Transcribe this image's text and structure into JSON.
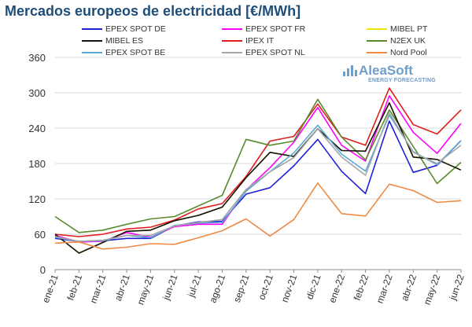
{
  "title": "Mercados europeos de electricidad [€/MWh]",
  "logo": {
    "name": "AleaSoft",
    "tagline": "ENERGY FORECASTING"
  },
  "chart_data": {
    "type": "line",
    "title": "Mercados europeos de electricidad [€/MWh]",
    "xlabel": "",
    "ylabel": "",
    "ylim": [
      0,
      360
    ],
    "yticks": [
      0,
      60,
      120,
      180,
      240,
      300,
      360
    ],
    "grid": true,
    "legend_position": "top",
    "categories": [
      "ene-21",
      "feb-21",
      "mar-21",
      "abr-21",
      "may-21",
      "jun-21",
      "jul-21",
      "ago-21",
      "sep-21",
      "oct-21",
      "nov-21",
      "dic-21",
      "ene-22",
      "feb-22",
      "mar-22",
      "abr-22",
      "may-22",
      "jun-22"
    ],
    "series": [
      {
        "name": "EPEX SPOT DE",
        "color": "#1f1fd6",
        "values": [
          53,
          48,
          49,
          53,
          53,
          74,
          81,
          82,
          128,
          139,
          176,
          221,
          167,
          129,
          252,
          165,
          177,
          219
        ]
      },
      {
        "name": "EPEX SPOT FR",
        "color": "#ff00ff",
        "values": [
          58,
          47,
          48,
          63,
          55,
          73,
          77,
          77,
          135,
          173,
          216,
          275,
          211,
          184,
          295,
          233,
          197,
          248
        ]
      },
      {
        "name": "MIBEL PT",
        "color": "#f2e600",
        "values": [
          60,
          28,
          46,
          65,
          67,
          83,
          92,
          106,
          156,
          199,
          192,
          239,
          202,
          201,
          283,
          191,
          187,
          169
        ]
      },
      {
        "name": "IPEX IT",
        "color": "#e01e1e",
        "values": [
          60,
          56,
          60,
          69,
          72,
          84,
          103,
          112,
          158,
          218,
          226,
          281,
          225,
          211,
          308,
          246,
          230,
          271
        ]
      },
      {
        "name": "N2EX UK",
        "color": "#5a8a2e",
        "values": [
          90,
          63,
          67,
          77,
          86,
          90,
          108,
          126,
          221,
          211,
          218,
          289,
          225,
          186,
          271,
          209,
          146,
          182
        ]
      },
      {
        "name": "MIBEL ES",
        "color": "#111111",
        "values": [
          60,
          28,
          46,
          65,
          67,
          83,
          92,
          106,
          156,
          199,
          192,
          239,
          202,
          201,
          283,
          191,
          187,
          169
        ]
      },
      {
        "name": "EPEX SPOT BE",
        "color": "#5aa9d6",
        "values": [
          55,
          48,
          49,
          58,
          54,
          75,
          79,
          80,
          133,
          166,
          198,
          245,
          196,
          167,
          262,
          200,
          178,
          219
        ]
      },
      {
        "name": "EPEX SPOT NL",
        "color": "#a6a6a6",
        "values": [
          56,
          48,
          50,
          58,
          58,
          74,
          80,
          85,
          136,
          166,
          190,
          239,
          191,
          160,
          266,
          199,
          180,
          211
        ]
      },
      {
        "name": "Nord Pool",
        "color": "#ef8a44",
        "values": [
          45,
          47,
          35,
          38,
          44,
          43,
          54,
          66,
          86,
          57,
          85,
          147,
          95,
          91,
          145,
          134,
          114,
          117
        ]
      }
    ]
  }
}
